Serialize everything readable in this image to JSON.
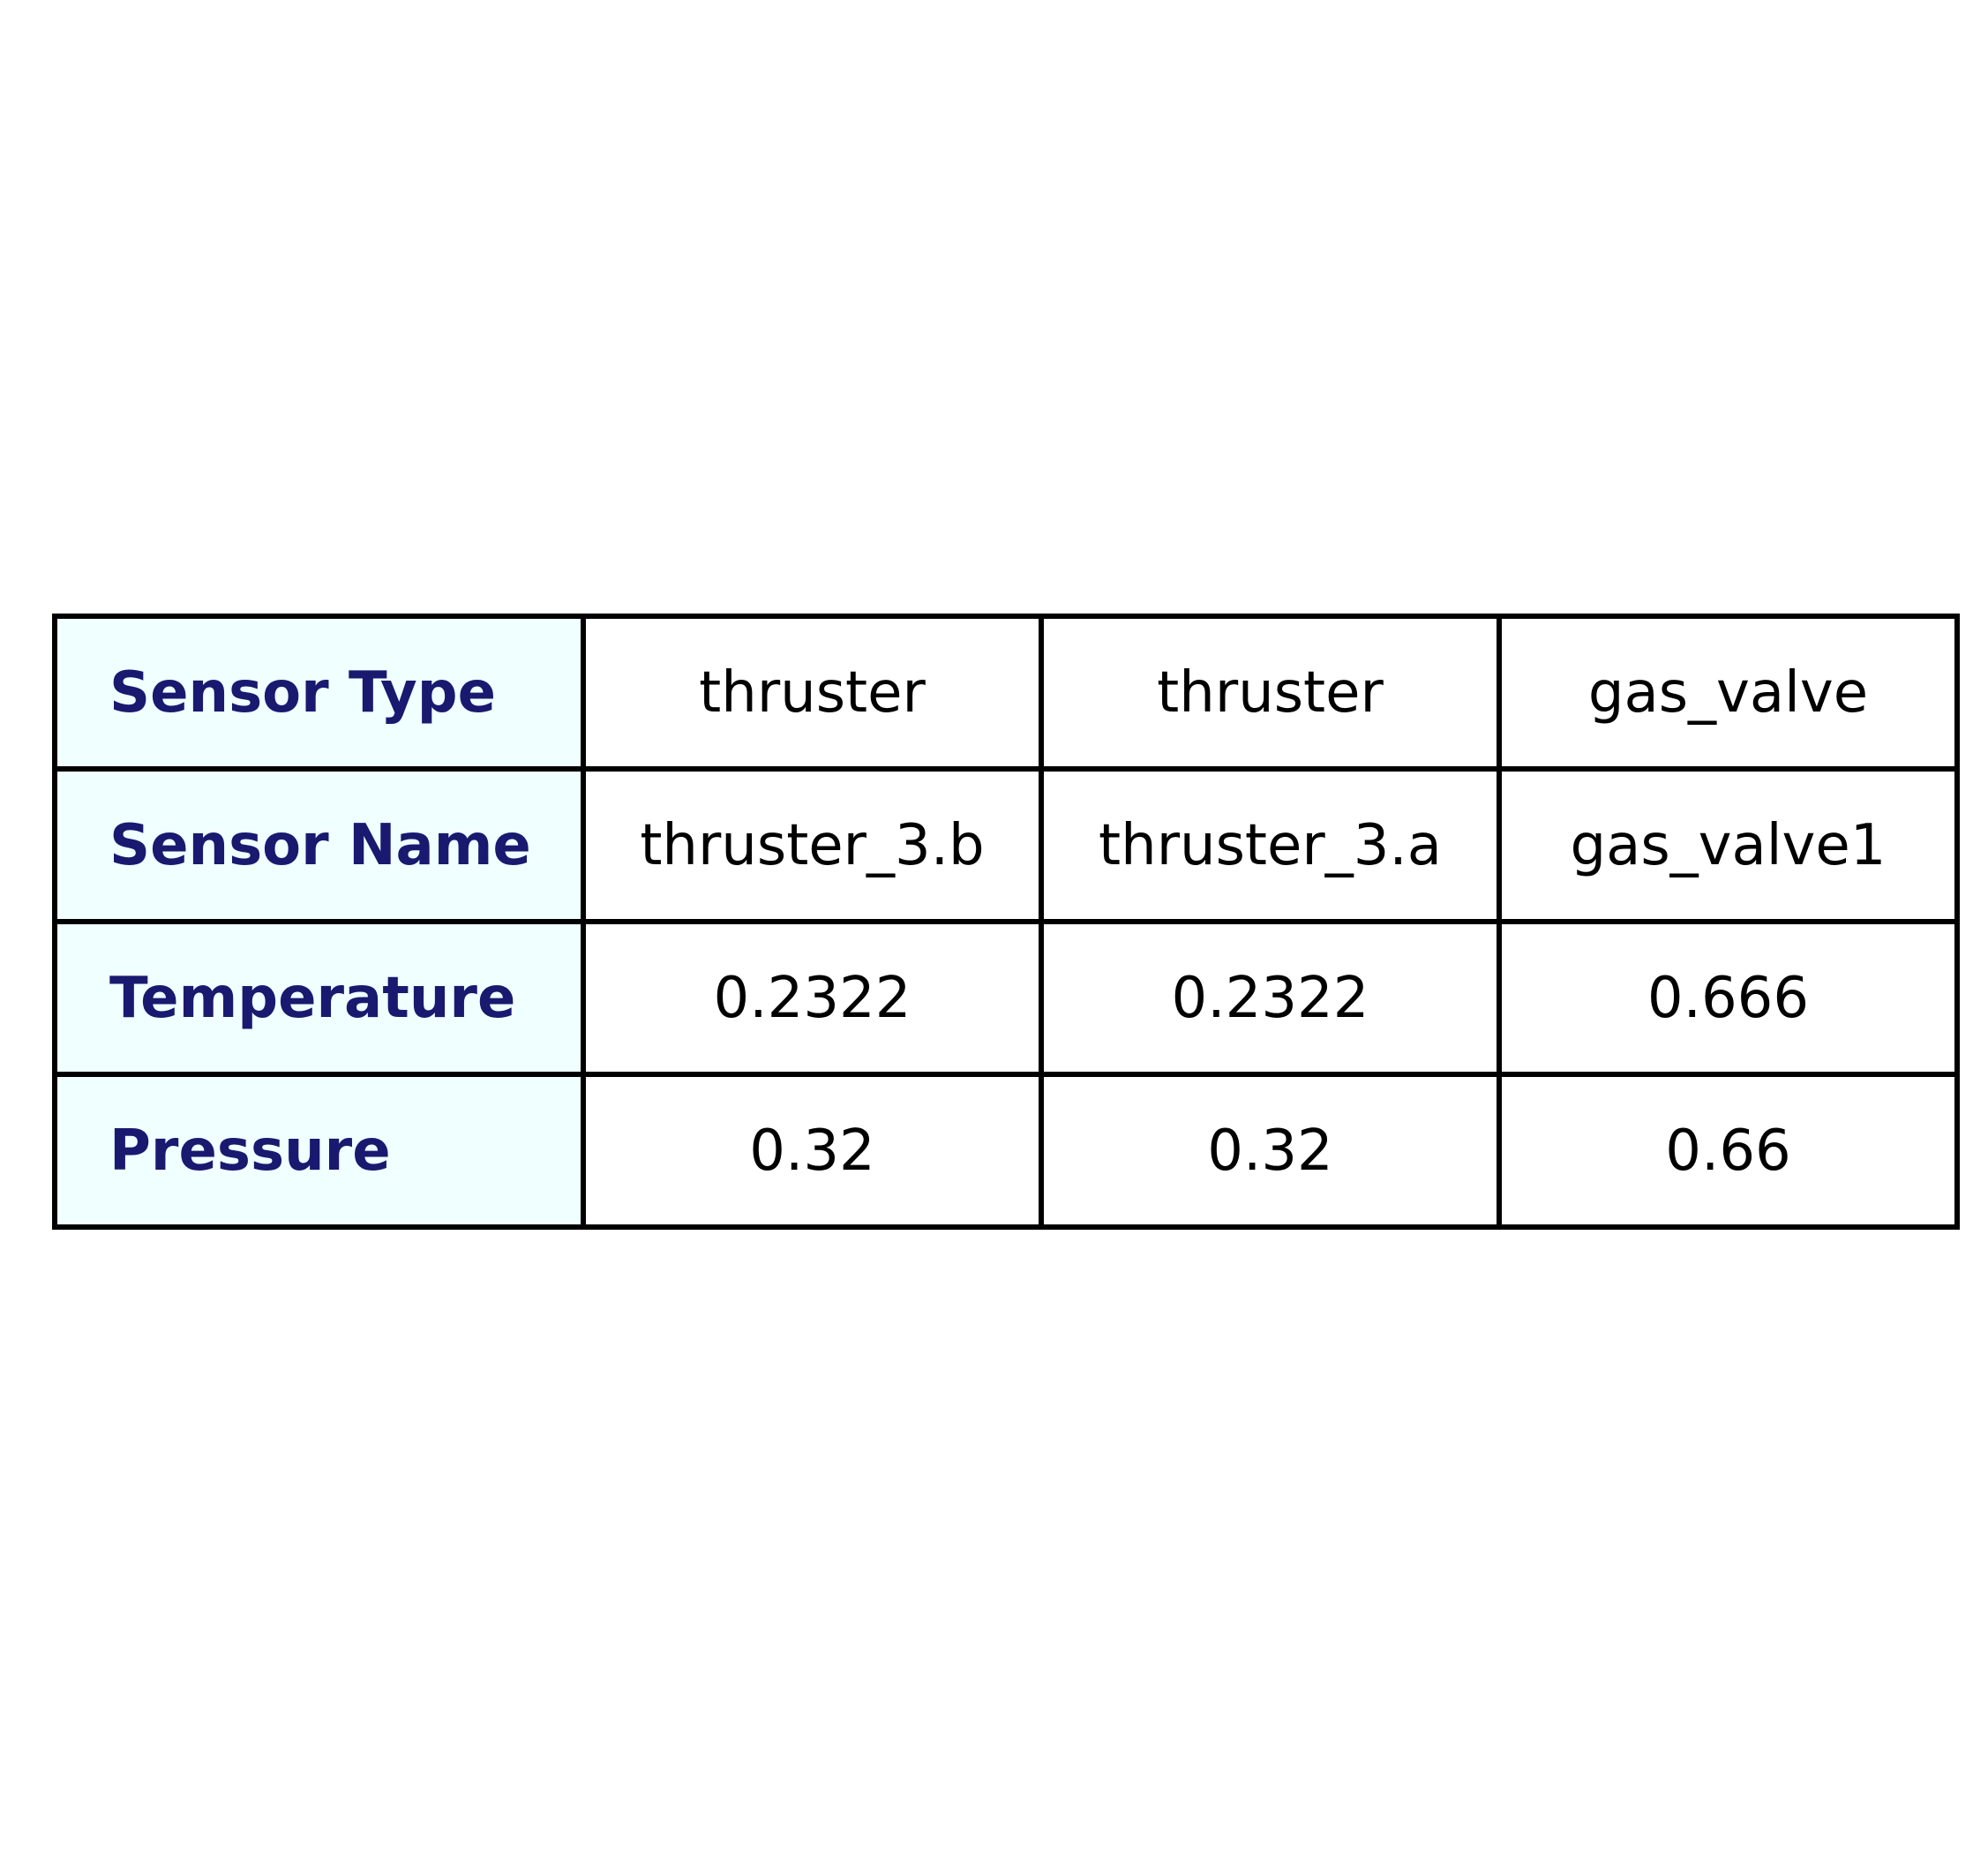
{
  "chart_data": {
    "type": "table",
    "columns": 4,
    "rows": [
      {
        "header": "Sensor Type",
        "cells": [
          "thruster",
          "thruster",
          "gas_valve"
        ]
      },
      {
        "header": "Sensor Name",
        "cells": [
          "thruster_3.b",
          "thruster_3.a",
          "gas_valve1"
        ]
      },
      {
        "header": "Temperature",
        "cells": [
          "0.2322",
          "0.2322",
          "0.666"
        ]
      },
      {
        "header": "Pressure",
        "cells": [
          "0.32",
          "0.32",
          "0.66"
        ]
      }
    ],
    "colors": {
      "header_background": "#F0FFFF",
      "header_text": "#191970",
      "cell_text": "#000000",
      "border": "#000000"
    }
  }
}
